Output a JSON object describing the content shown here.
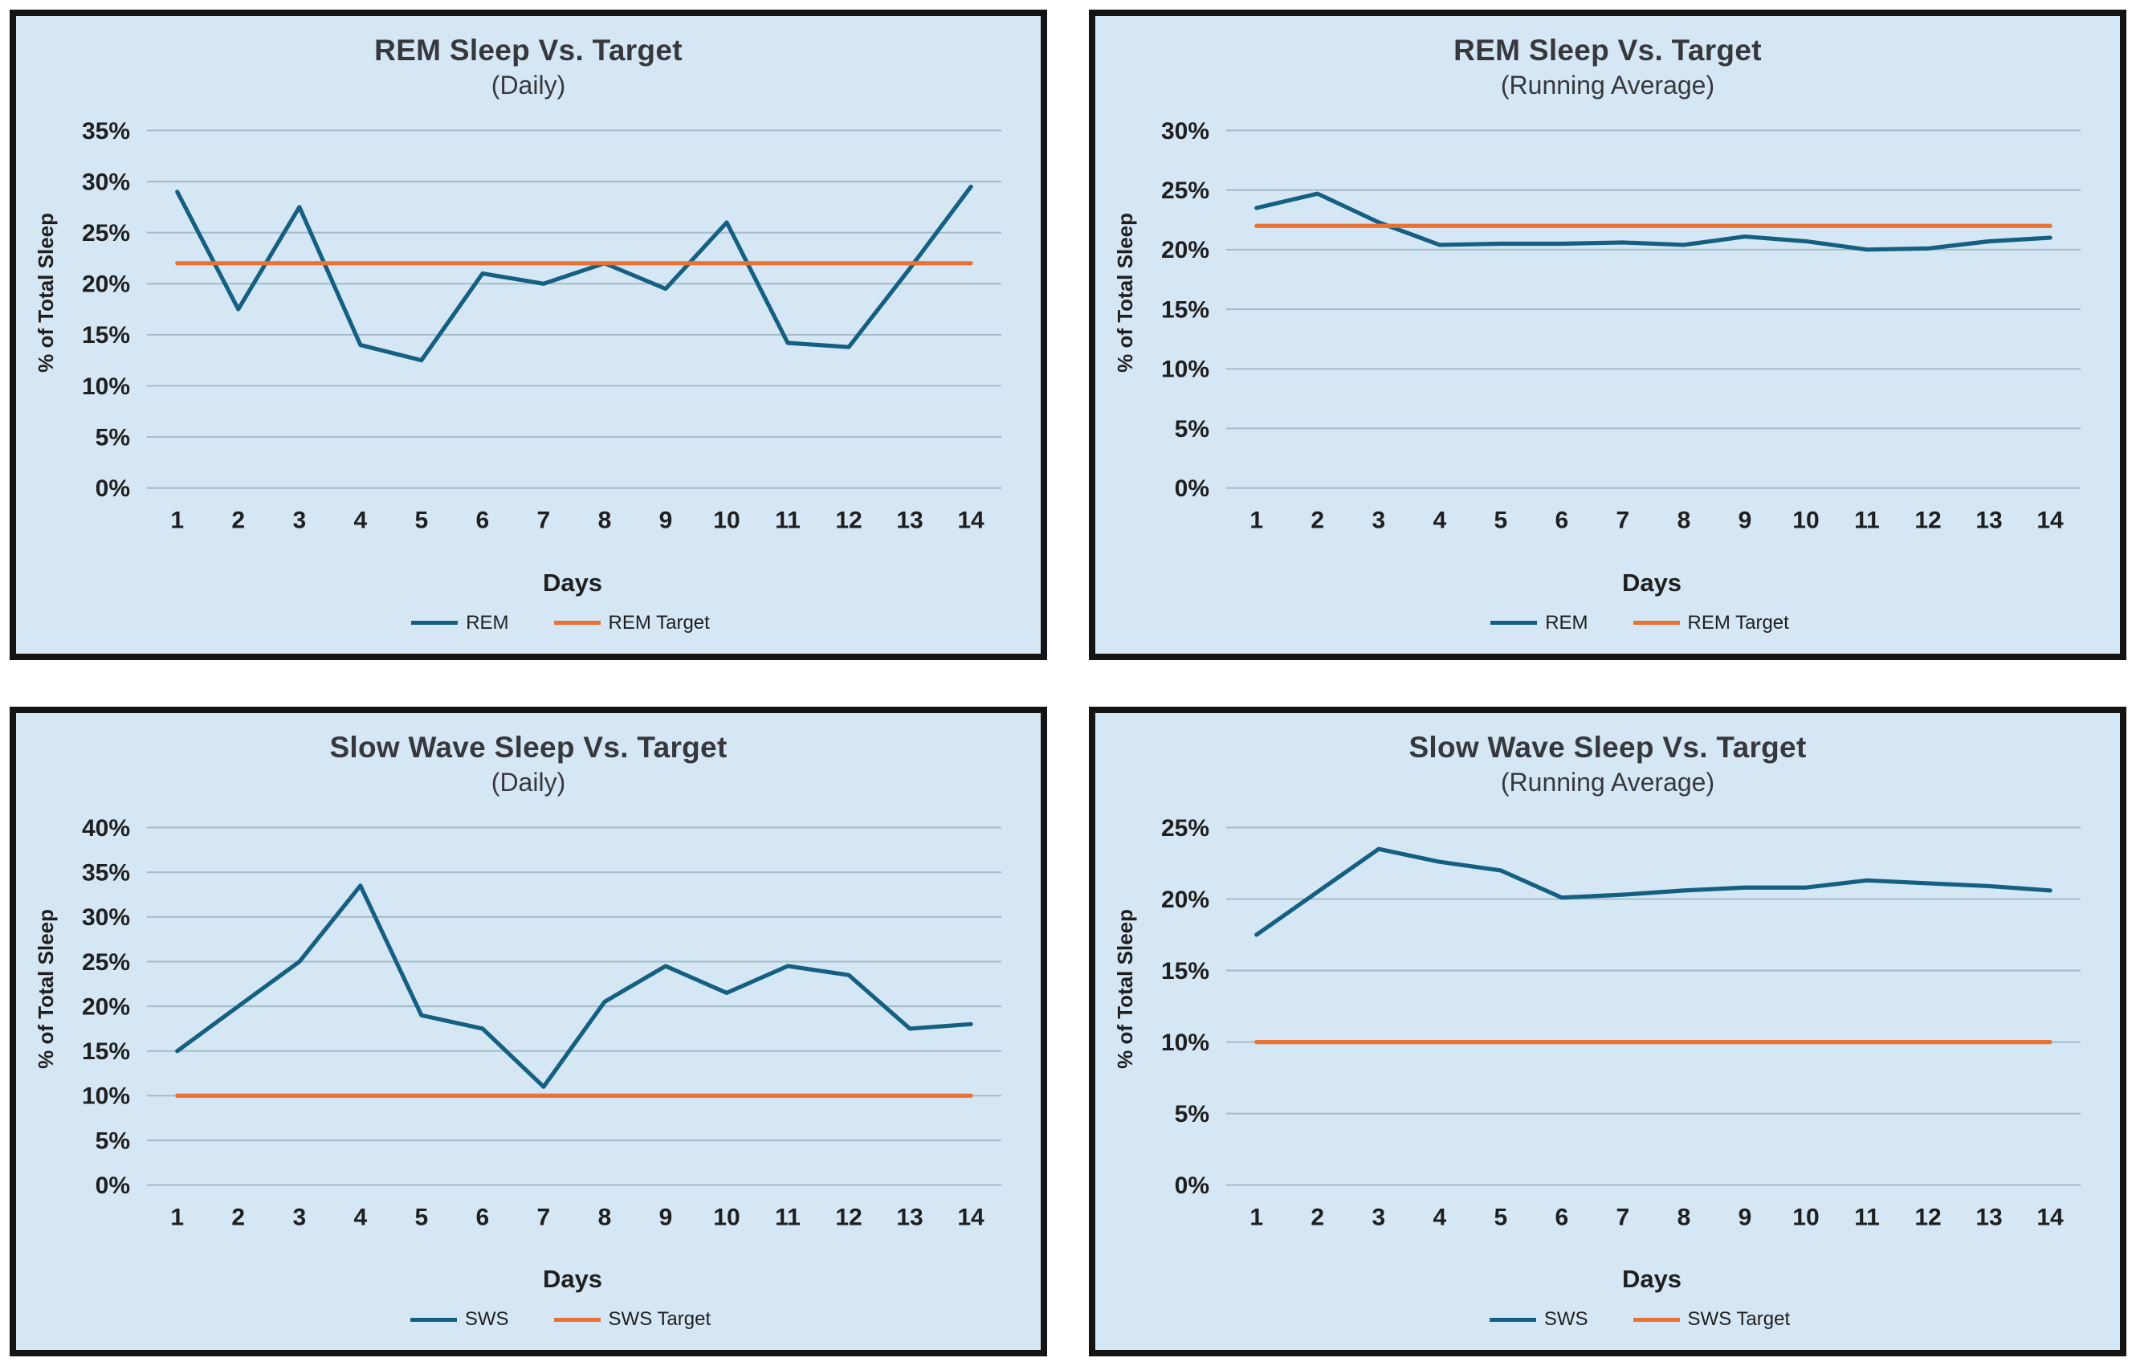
{
  "page": {
    "background": "#ffffff"
  },
  "panel_style": {
    "background": "#d5e7f4",
    "border_color": "#141414"
  },
  "colors": {
    "grid": "#a6bccb",
    "tick_text": "#1f1f1f",
    "title_text": "#36383d",
    "series_blue": "#156082",
    "target_orange": "#E97132"
  },
  "chart_data": [
    {
      "type": "line",
      "title": "REM Sleep Vs. Target",
      "subtitle": "(Daily)",
      "xlabel": "Days",
      "ylabel": "% of Total Sleep",
      "x": [
        1,
        2,
        3,
        4,
        5,
        6,
        7,
        8,
        9,
        10,
        11,
        12,
        13,
        14
      ],
      "ylim": [
        0,
        35
      ],
      "yticks": [
        0,
        5,
        10,
        15,
        20,
        25,
        30,
        35
      ],
      "ytick_suffix": "%",
      "grid": true,
      "legend_position": "bottom",
      "series": [
        {
          "name": "REM",
          "color": "#156082",
          "values": [
            29,
            17.5,
            27.5,
            14,
            12.5,
            21,
            20,
            22,
            19.5,
            26,
            14.2,
            13.8,
            21.5,
            29.5
          ]
        },
        {
          "name": "REM Target",
          "color": "#E97132",
          "constant": 22
        }
      ]
    },
    {
      "type": "line",
      "title": "REM Sleep Vs. Target",
      "subtitle": "(Running Average)",
      "xlabel": "Days",
      "ylabel": "% of Total Sleep",
      "x": [
        1,
        2,
        3,
        4,
        5,
        6,
        7,
        8,
        9,
        10,
        11,
        12,
        13,
        14
      ],
      "ylim": [
        0,
        30
      ],
      "yticks": [
        0,
        5,
        10,
        15,
        20,
        25,
        30
      ],
      "ytick_suffix": "%",
      "grid": true,
      "legend_position": "bottom",
      "series": [
        {
          "name": "REM",
          "color": "#156082",
          "values": [
            23.5,
            24.7,
            22.3,
            20.4,
            20.5,
            20.5,
            20.6,
            20.4,
            21.1,
            20.7,
            20.0,
            20.1,
            20.7,
            21.0
          ]
        },
        {
          "name": "REM Target",
          "color": "#E97132",
          "constant": 22
        }
      ]
    },
    {
      "type": "line",
      "title": "Slow Wave Sleep Vs. Target",
      "subtitle": "(Daily)",
      "xlabel": "Days",
      "ylabel": "% of Total Sleep",
      "x": [
        1,
        2,
        3,
        4,
        5,
        6,
        7,
        8,
        9,
        10,
        11,
        12,
        13,
        14
      ],
      "ylim": [
        0,
        40
      ],
      "yticks": [
        0,
        5,
        10,
        15,
        20,
        25,
        30,
        35,
        40
      ],
      "ytick_suffix": "%",
      "grid": true,
      "legend_position": "bottom",
      "series": [
        {
          "name": "SWS",
          "color": "#156082",
          "values": [
            15,
            20,
            25,
            33.5,
            19,
            17.5,
            11,
            20.5,
            24.5,
            21.5,
            24.5,
            23.5,
            17.5,
            18
          ]
        },
        {
          "name": "SWS Target",
          "color": "#E97132",
          "constant": 10
        }
      ]
    },
    {
      "type": "line",
      "title": "Slow Wave Sleep Vs. Target",
      "subtitle": "(Running Average)",
      "xlabel": "Days",
      "ylabel": "% of Total Sleep",
      "x": [
        1,
        2,
        3,
        4,
        5,
        6,
        7,
        8,
        9,
        10,
        11,
        12,
        13,
        14
      ],
      "ylim": [
        0,
        25
      ],
      "yticks": [
        0,
        5,
        10,
        15,
        20,
        25
      ],
      "ytick_suffix": "%",
      "grid": true,
      "legend_position": "bottom",
      "series": [
        {
          "name": "SWS",
          "color": "#156082",
          "values": [
            17.5,
            20.5,
            23.5,
            22.6,
            22.0,
            20.1,
            20.3,
            20.6,
            20.8,
            20.8,
            21.3,
            21.1,
            20.9,
            20.6
          ]
        },
        {
          "name": "SWS Target",
          "color": "#E97132",
          "constant": 10
        }
      ]
    }
  ]
}
